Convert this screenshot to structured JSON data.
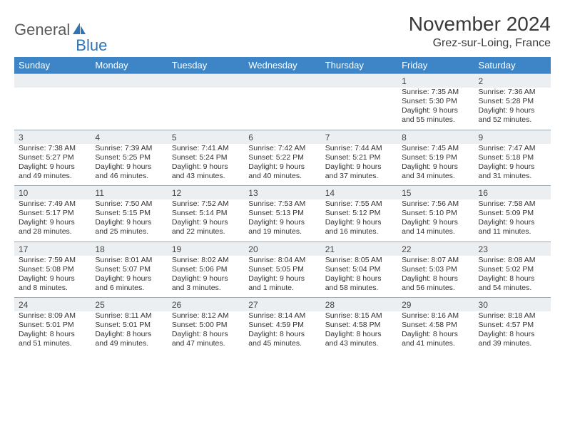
{
  "brand": {
    "text1": "General",
    "text2": "Blue",
    "text2_color": "#2f74b5",
    "icon_color": "#2f74b5"
  },
  "title": "November 2024",
  "location": "Grez-sur-Loing, France",
  "title_fontsize": 28,
  "location_fontsize": 16,
  "header_bg": "#3d85c6",
  "header_fg": "#ffffff",
  "daynum_bg": "#eceff1",
  "body_bg": "#ffffff",
  "grid_line": "#9aa7b0",
  "cell_fontsize": 10.5,
  "daynum_fontsize": 12,
  "day_labels": [
    "Sunday",
    "Monday",
    "Tuesday",
    "Wednesday",
    "Thursday",
    "Friday",
    "Saturday"
  ],
  "weeks": [
    [
      {
        "n": "",
        "sunrise": "",
        "sunset": "",
        "daylight": ""
      },
      {
        "n": "",
        "sunrise": "",
        "sunset": "",
        "daylight": ""
      },
      {
        "n": "",
        "sunrise": "",
        "sunset": "",
        "daylight": ""
      },
      {
        "n": "",
        "sunrise": "",
        "sunset": "",
        "daylight": ""
      },
      {
        "n": "",
        "sunrise": "",
        "sunset": "",
        "daylight": ""
      },
      {
        "n": "1",
        "sunrise": "Sunrise: 7:35 AM",
        "sunset": "Sunset: 5:30 PM",
        "daylight": "Daylight: 9 hours and 55 minutes."
      },
      {
        "n": "2",
        "sunrise": "Sunrise: 7:36 AM",
        "sunset": "Sunset: 5:28 PM",
        "daylight": "Daylight: 9 hours and 52 minutes."
      }
    ],
    [
      {
        "n": "3",
        "sunrise": "Sunrise: 7:38 AM",
        "sunset": "Sunset: 5:27 PM",
        "daylight": "Daylight: 9 hours and 49 minutes."
      },
      {
        "n": "4",
        "sunrise": "Sunrise: 7:39 AM",
        "sunset": "Sunset: 5:25 PM",
        "daylight": "Daylight: 9 hours and 46 minutes."
      },
      {
        "n": "5",
        "sunrise": "Sunrise: 7:41 AM",
        "sunset": "Sunset: 5:24 PM",
        "daylight": "Daylight: 9 hours and 43 minutes."
      },
      {
        "n": "6",
        "sunrise": "Sunrise: 7:42 AM",
        "sunset": "Sunset: 5:22 PM",
        "daylight": "Daylight: 9 hours and 40 minutes."
      },
      {
        "n": "7",
        "sunrise": "Sunrise: 7:44 AM",
        "sunset": "Sunset: 5:21 PM",
        "daylight": "Daylight: 9 hours and 37 minutes."
      },
      {
        "n": "8",
        "sunrise": "Sunrise: 7:45 AM",
        "sunset": "Sunset: 5:19 PM",
        "daylight": "Daylight: 9 hours and 34 minutes."
      },
      {
        "n": "9",
        "sunrise": "Sunrise: 7:47 AM",
        "sunset": "Sunset: 5:18 PM",
        "daylight": "Daylight: 9 hours and 31 minutes."
      }
    ],
    [
      {
        "n": "10",
        "sunrise": "Sunrise: 7:49 AM",
        "sunset": "Sunset: 5:17 PM",
        "daylight": "Daylight: 9 hours and 28 minutes."
      },
      {
        "n": "11",
        "sunrise": "Sunrise: 7:50 AM",
        "sunset": "Sunset: 5:15 PM",
        "daylight": "Daylight: 9 hours and 25 minutes."
      },
      {
        "n": "12",
        "sunrise": "Sunrise: 7:52 AM",
        "sunset": "Sunset: 5:14 PM",
        "daylight": "Daylight: 9 hours and 22 minutes."
      },
      {
        "n": "13",
        "sunrise": "Sunrise: 7:53 AM",
        "sunset": "Sunset: 5:13 PM",
        "daylight": "Daylight: 9 hours and 19 minutes."
      },
      {
        "n": "14",
        "sunrise": "Sunrise: 7:55 AM",
        "sunset": "Sunset: 5:12 PM",
        "daylight": "Daylight: 9 hours and 16 minutes."
      },
      {
        "n": "15",
        "sunrise": "Sunrise: 7:56 AM",
        "sunset": "Sunset: 5:10 PM",
        "daylight": "Daylight: 9 hours and 14 minutes."
      },
      {
        "n": "16",
        "sunrise": "Sunrise: 7:58 AM",
        "sunset": "Sunset: 5:09 PM",
        "daylight": "Daylight: 9 hours and 11 minutes."
      }
    ],
    [
      {
        "n": "17",
        "sunrise": "Sunrise: 7:59 AM",
        "sunset": "Sunset: 5:08 PM",
        "daylight": "Daylight: 9 hours and 8 minutes."
      },
      {
        "n": "18",
        "sunrise": "Sunrise: 8:01 AM",
        "sunset": "Sunset: 5:07 PM",
        "daylight": "Daylight: 9 hours and 6 minutes."
      },
      {
        "n": "19",
        "sunrise": "Sunrise: 8:02 AM",
        "sunset": "Sunset: 5:06 PM",
        "daylight": "Daylight: 9 hours and 3 minutes."
      },
      {
        "n": "20",
        "sunrise": "Sunrise: 8:04 AM",
        "sunset": "Sunset: 5:05 PM",
        "daylight": "Daylight: 9 hours and 1 minute."
      },
      {
        "n": "21",
        "sunrise": "Sunrise: 8:05 AM",
        "sunset": "Sunset: 5:04 PM",
        "daylight": "Daylight: 8 hours and 58 minutes."
      },
      {
        "n": "22",
        "sunrise": "Sunrise: 8:07 AM",
        "sunset": "Sunset: 5:03 PM",
        "daylight": "Daylight: 8 hours and 56 minutes."
      },
      {
        "n": "23",
        "sunrise": "Sunrise: 8:08 AM",
        "sunset": "Sunset: 5:02 PM",
        "daylight": "Daylight: 8 hours and 54 minutes."
      }
    ],
    [
      {
        "n": "24",
        "sunrise": "Sunrise: 8:09 AM",
        "sunset": "Sunset: 5:01 PM",
        "daylight": "Daylight: 8 hours and 51 minutes."
      },
      {
        "n": "25",
        "sunrise": "Sunrise: 8:11 AM",
        "sunset": "Sunset: 5:01 PM",
        "daylight": "Daylight: 8 hours and 49 minutes."
      },
      {
        "n": "26",
        "sunrise": "Sunrise: 8:12 AM",
        "sunset": "Sunset: 5:00 PM",
        "daylight": "Daylight: 8 hours and 47 minutes."
      },
      {
        "n": "27",
        "sunrise": "Sunrise: 8:14 AM",
        "sunset": "Sunset: 4:59 PM",
        "daylight": "Daylight: 8 hours and 45 minutes."
      },
      {
        "n": "28",
        "sunrise": "Sunrise: 8:15 AM",
        "sunset": "Sunset: 4:58 PM",
        "daylight": "Daylight: 8 hours and 43 minutes."
      },
      {
        "n": "29",
        "sunrise": "Sunrise: 8:16 AM",
        "sunset": "Sunset: 4:58 PM",
        "daylight": "Daylight: 8 hours and 41 minutes."
      },
      {
        "n": "30",
        "sunrise": "Sunrise: 8:18 AM",
        "sunset": "Sunset: 4:57 PM",
        "daylight": "Daylight: 8 hours and 39 minutes."
      }
    ]
  ]
}
